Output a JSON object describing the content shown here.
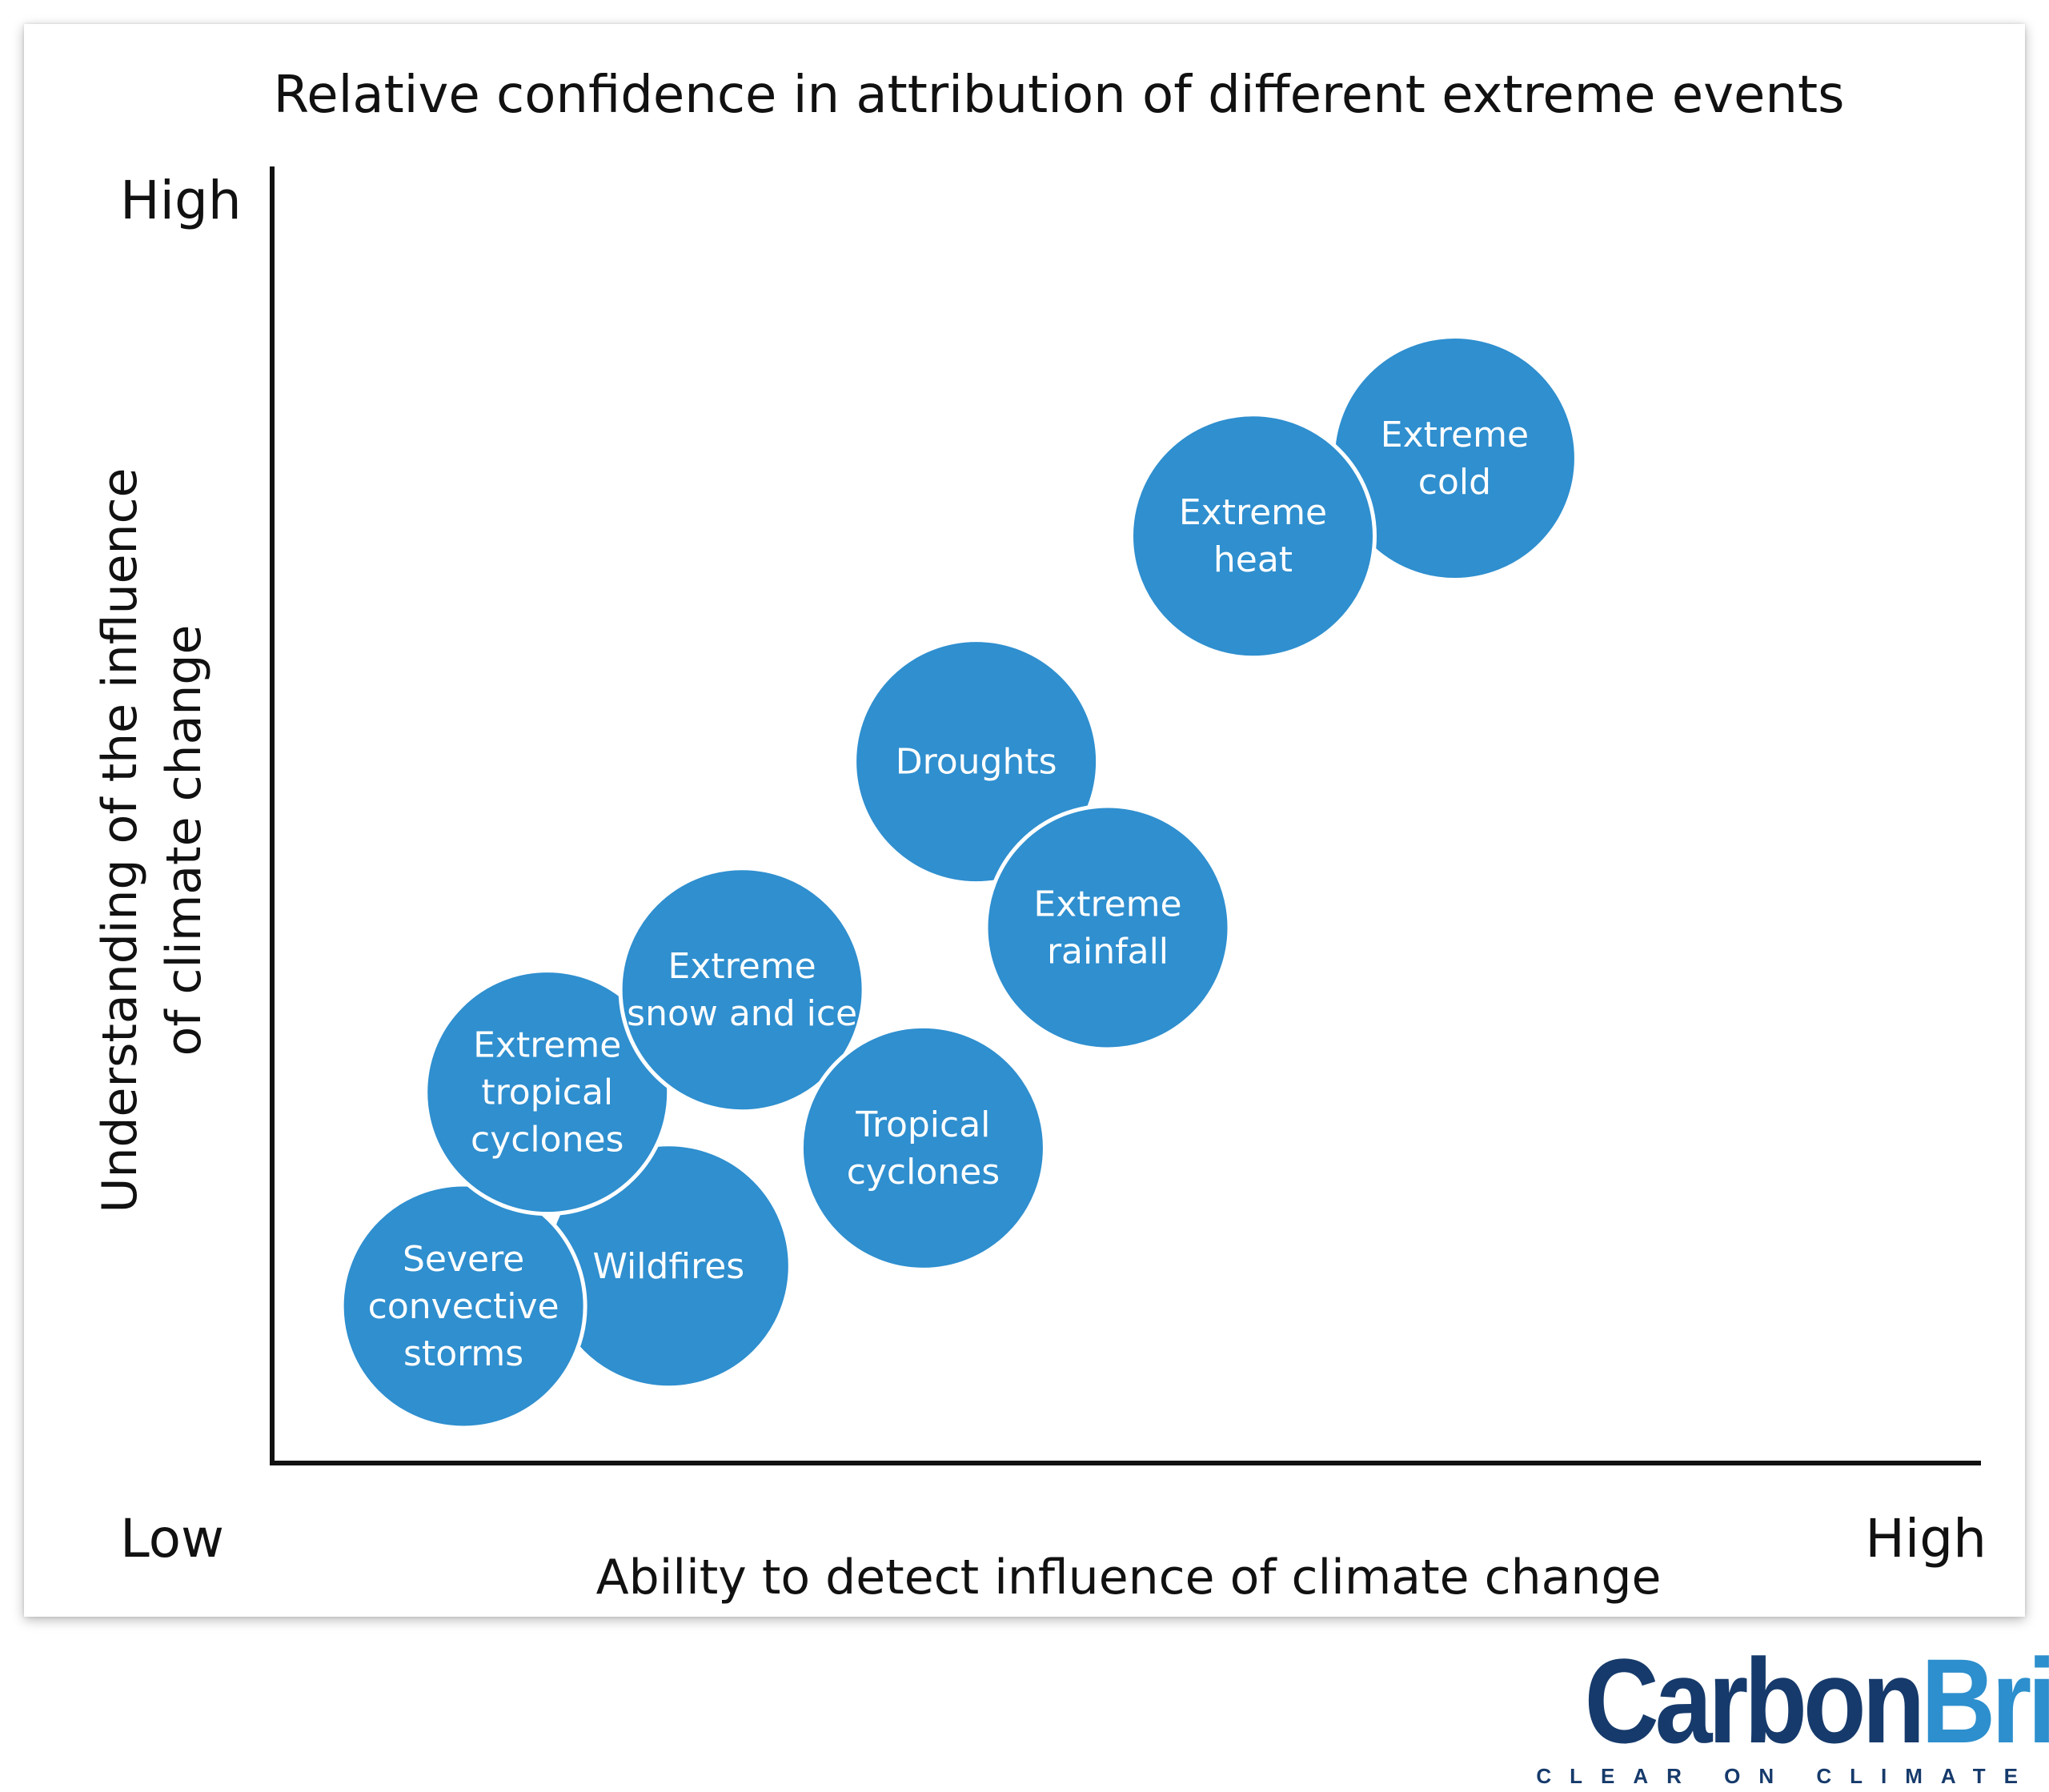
{
  "chart_data": {
    "type": "scatter",
    "title": "Relative confidence in attribution of different extreme events",
    "xlabel": "Ability to detect influence of climate change",
    "ylabel_lines": [
      "Understanding of the influence",
      "of climate change"
    ],
    "x_low_label": "Low",
    "x_high_label": "High",
    "y_high_label": "High",
    "xlim": [
      0,
      100
    ],
    "ylim": [
      0,
      100
    ],
    "bubble_color": "#2f8fcf",
    "axis_color": "#111111",
    "points": [
      {
        "label_lines": [
          "Wildfires"
        ],
        "x": 23.2,
        "y": 15.2
      },
      {
        "label_lines": [
          "Severe",
          "convective",
          "storms"
        ],
        "x": 11.2,
        "y": 12.1
      },
      {
        "label_lines": [
          "Extreme",
          "tropical",
          "cyclones"
        ],
        "x": 16.1,
        "y": 28.6
      },
      {
        "label_lines": [
          "Extreme",
          "snow and ice"
        ],
        "x": 27.5,
        "y": 36.5
      },
      {
        "label_lines": [
          "Tropical",
          "cyclones"
        ],
        "x": 38.1,
        "y": 24.3
      },
      {
        "label_lines": [
          "Droughts"
        ],
        "x": 41.2,
        "y": 54.1
      },
      {
        "label_lines": [
          "Extreme",
          "rainfall"
        ],
        "x": 48.9,
        "y": 41.3
      },
      {
        "label_lines": [
          "Extreme",
          "cold"
        ],
        "x": 69.2,
        "y": 77.5
      },
      {
        "label_lines": [
          "Extreme",
          "heat"
        ],
        "x": 57.4,
        "y": 71.5
      }
    ]
  },
  "branding": {
    "logo_part1": "Carbon",
    "logo_part2": "Brief",
    "tagline": "CLEAR ON CLIMATE"
  }
}
